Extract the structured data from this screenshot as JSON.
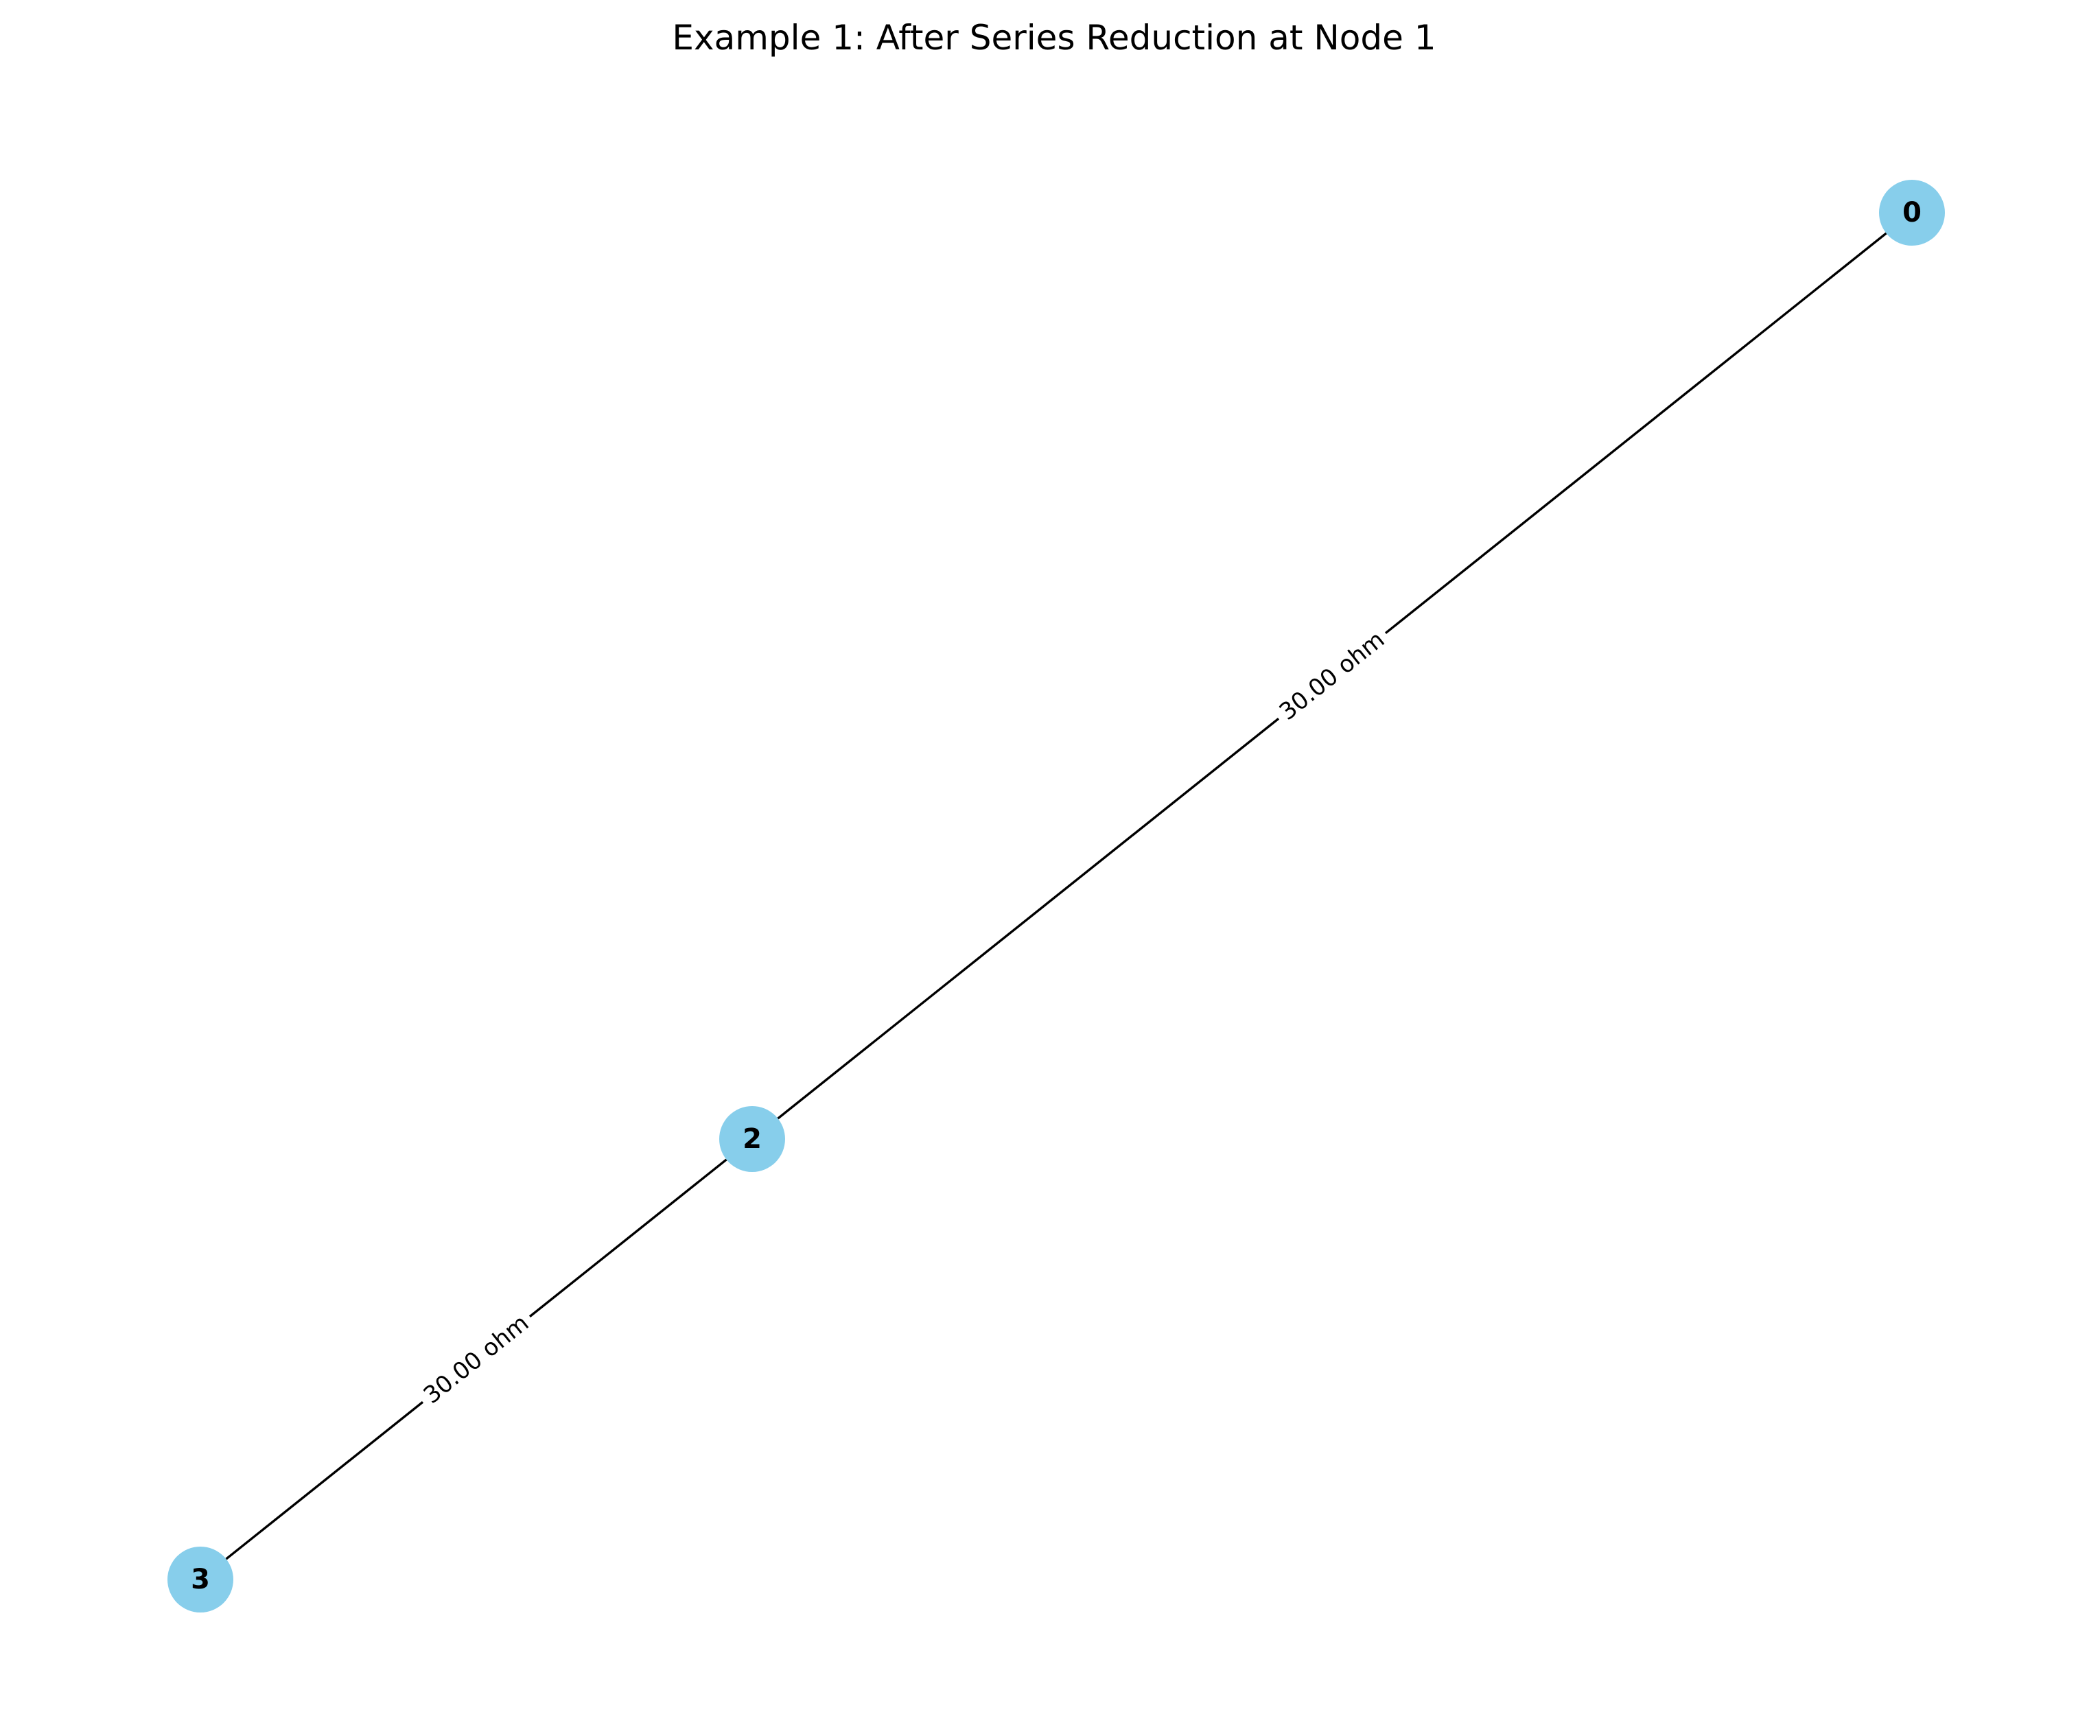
{
  "figure": {
    "title": "Example 1: After Series Reduction at Node 1"
  },
  "colors": {
    "node_fill": "#87CEEB",
    "edge": "#000000",
    "text": "#000000",
    "label_background": "#ffffff"
  },
  "graph": {
    "nodes": [
      {
        "id": "0",
        "label": "0"
      },
      {
        "id": "2",
        "label": "2"
      },
      {
        "id": "3",
        "label": "3"
      }
    ],
    "edges": [
      {
        "source": "0",
        "target": "2",
        "label": "30.00 ohm"
      },
      {
        "source": "2",
        "target": "3",
        "label": "30.00 ohm"
      }
    ]
  }
}
